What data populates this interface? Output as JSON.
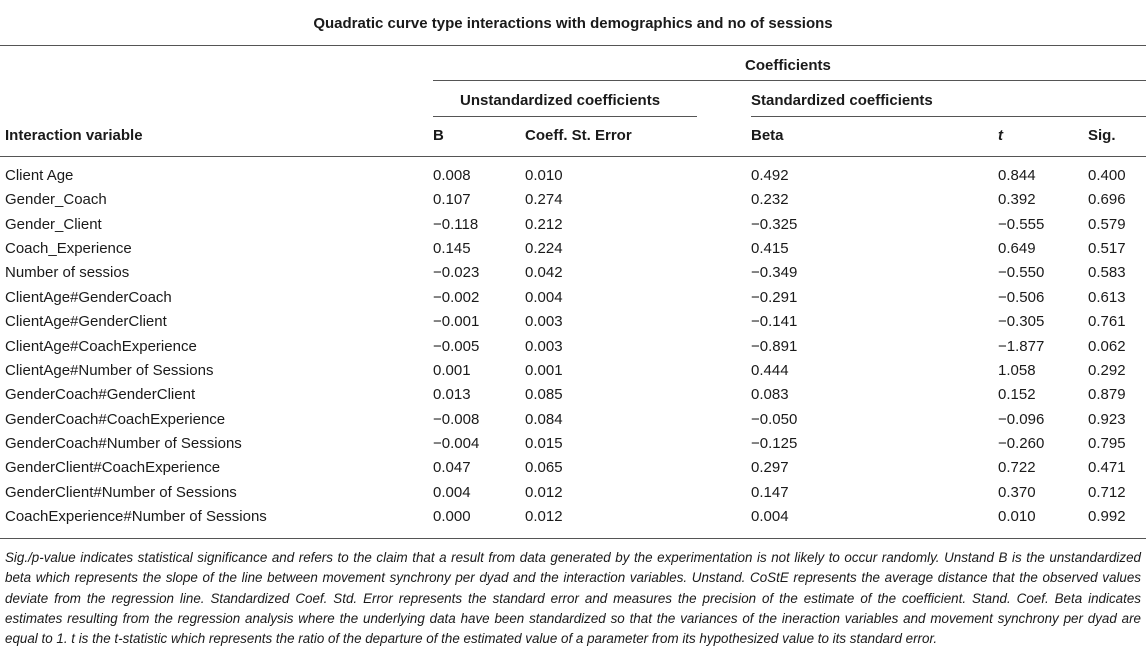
{
  "table": {
    "title": "Quadratic curve type interactions with demographics and no of sessions",
    "group_header": "Coefficients",
    "subgroup_unstandardized": "Unstandardized coefficients",
    "subgroup_standardized": "Standardized coefficients",
    "columns": [
      "Interaction variable",
      "B",
      "Coeff. St. Error",
      "Beta",
      "t",
      "Sig."
    ],
    "rows": [
      [
        "Client Age",
        "0.008",
        "0.010",
        "0.492",
        "0.844",
        "0.400"
      ],
      [
        "Gender_Coach",
        "0.107",
        "0.274",
        "0.232",
        "0.392",
        "0.696"
      ],
      [
        "Gender_Client",
        "−0.118",
        "0.212",
        "−0.325",
        "−0.555",
        "0.579"
      ],
      [
        "Coach_Experience",
        "0.145",
        "0.224",
        "0.415",
        "0.649",
        "0.517"
      ],
      [
        "Number of sessios",
        "−0.023",
        "0.042",
        "−0.349",
        "−0.550",
        "0.583"
      ],
      [
        "ClientAge#GenderCoach",
        "−0.002",
        "0.004",
        "−0.291",
        "−0.506",
        "0.613"
      ],
      [
        "ClientAge#GenderClient",
        "−0.001",
        "0.003",
        "−0.141",
        "−0.305",
        "0.761"
      ],
      [
        "ClientAge#CoachExperience",
        "−0.005",
        "0.003",
        "−0.891",
        "−1.877",
        "0.062"
      ],
      [
        "ClientAge#Number of Sessions",
        "0.001",
        "0.001",
        "0.444",
        "1.058",
        "0.292"
      ],
      [
        "GenderCoach#GenderClient",
        "0.013",
        "0.085",
        "0.083",
        "0.152",
        "0.879"
      ],
      [
        "GenderCoach#CoachExperience",
        "−0.008",
        "0.084",
        "−0.050",
        "−0.096",
        "0.923"
      ],
      [
        "GenderCoach#Number of Sessions",
        "−0.004",
        "0.015",
        "−0.125",
        "−0.260",
        "0.795"
      ],
      [
        "GenderClient#CoachExperience",
        "0.047",
        "0.065",
        "0.297",
        "0.722",
        "0.471"
      ],
      [
        "GenderClient#Number of Sessions",
        "0.004",
        "0.012",
        "0.147",
        "0.370",
        "0.712"
      ],
      [
        "CoachExperience#Number of Sessions",
        "0.000",
        "0.012",
        "0.004",
        "0.010",
        "0.992"
      ]
    ],
    "footnote": "Sig./p-value indicates statistical significance and refers to the claim that a result from data generated by the experimentation is not likely to occur randomly. Unstand B is the unstandardized beta which represents the slope of the line between movement synchrony per dyad and the interaction variables. Unstand. CoStE represents the average distance that the observed values deviate from the regression line. Standardized Coef. Std. Error represents the standard error and measures the precision of the estimate of the coefficient. Stand. Coef. Beta indicates estimates resulting from the regression analysis where the underlying data have been standardized so that the variances of the ineraction variables and movement synchrony per dyad are equal to 1. t is the t-statistic which represents the ratio of the departure of the estimated value of a parameter from its hypothesized value to its standard error."
  }
}
